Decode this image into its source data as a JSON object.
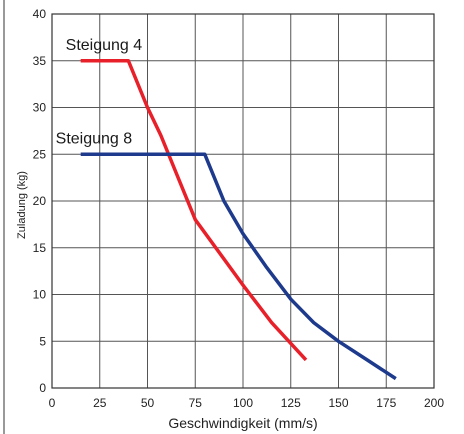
{
  "chart_data": {
    "type": "line",
    "xlabel": "Geschwindigkeit (mm/s)",
    "ylabel": "Zuladung (kg)",
    "xlim": [
      0,
      200
    ],
    "ylim": [
      0,
      40
    ],
    "x_ticks": [
      "0",
      "25",
      "50",
      "75",
      "100",
      "125",
      "150",
      "175",
      "200"
    ],
    "y_ticks": [
      "0",
      "5",
      "10",
      "15",
      "20",
      "25",
      "30",
      "35",
      "40"
    ],
    "grid": true,
    "series": [
      {
        "name": "Steigung 4",
        "color": "#e8202a",
        "points": [
          [
            15,
            35
          ],
          [
            40,
            35
          ],
          [
            50,
            30
          ],
          [
            57,
            27
          ],
          [
            65,
            23
          ],
          [
            75,
            18
          ],
          [
            100,
            11
          ],
          [
            115,
            7
          ],
          [
            133,
            3
          ]
        ]
      },
      {
        "name": "Steigung 8",
        "color": "#1d3a8c",
        "points": [
          [
            15,
            25
          ],
          [
            80,
            25
          ],
          [
            90,
            20
          ],
          [
            100,
            16.5
          ],
          [
            112,
            13
          ],
          [
            125,
            9.5
          ],
          [
            137,
            7
          ],
          [
            150,
            5
          ],
          [
            165,
            3
          ],
          [
            180,
            1
          ]
        ]
      }
    ]
  }
}
